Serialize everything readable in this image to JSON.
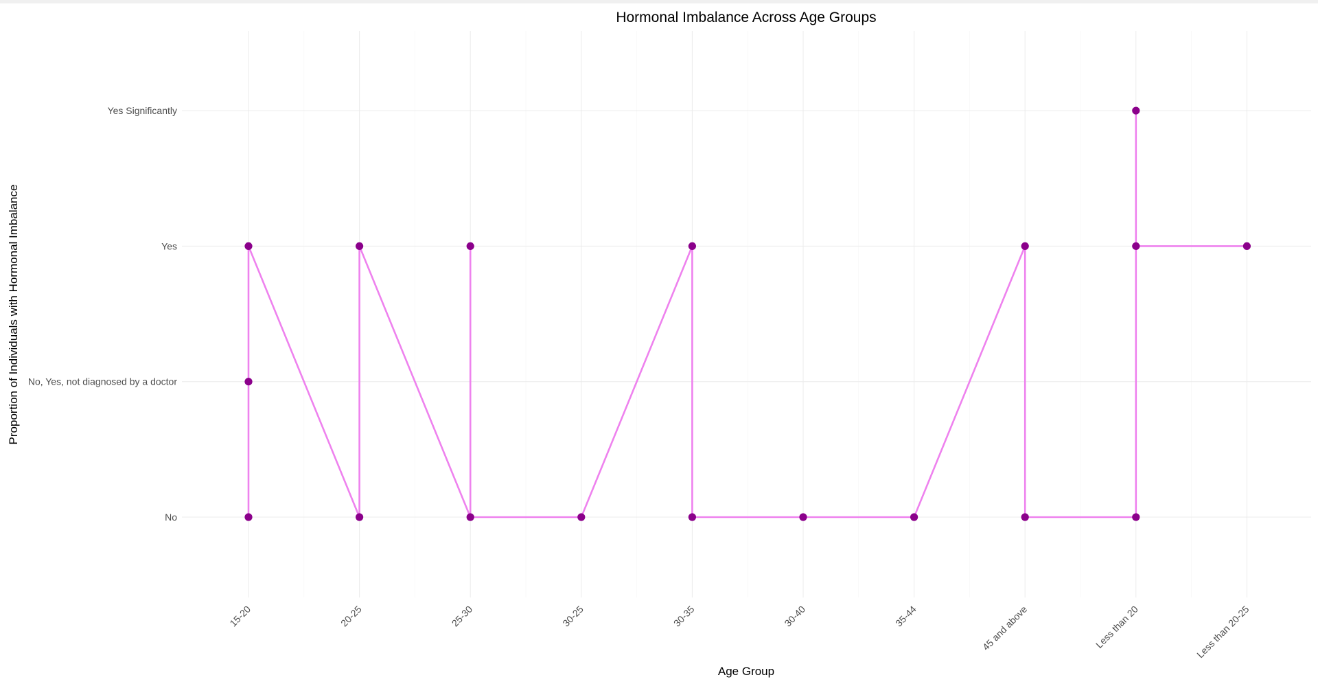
{
  "chart_data": {
    "type": "line",
    "title": "Hormonal Imbalance Across Age Groups",
    "xlabel": "Age Group",
    "ylabel": "Proportion of Individuals with Hormonal Imbalance",
    "categories": [
      "15-20",
      "20-25",
      "25-30",
      "30-25",
      "30-35",
      "30-40",
      "35-44",
      "45 and above",
      "Less than 20",
      "Less than 20-25"
    ],
    "y_levels": [
      "No",
      "No, Yes, not diagnosed by a doctor",
      "Yes",
      "Yes Significantly"
    ],
    "points": [
      {
        "x": "15-20",
        "y": "No"
      },
      {
        "x": "15-20",
        "y": "No, Yes, not diagnosed by a doctor"
      },
      {
        "x": "15-20",
        "y": "Yes"
      },
      {
        "x": "20-25",
        "y": "No"
      },
      {
        "x": "20-25",
        "y": "Yes"
      },
      {
        "x": "25-30",
        "y": "Yes"
      },
      {
        "x": "25-30",
        "y": "No"
      },
      {
        "x": "30-25",
        "y": "No"
      },
      {
        "x": "30-35",
        "y": "Yes"
      },
      {
        "x": "30-35",
        "y": "No"
      },
      {
        "x": "30-40",
        "y": "No"
      },
      {
        "x": "35-44",
        "y": "No"
      },
      {
        "x": "45 and above",
        "y": "Yes"
      },
      {
        "x": "45 and above",
        "y": "No"
      },
      {
        "x": "Less than 20",
        "y": "No"
      },
      {
        "x": "Less than 20",
        "y": "Yes"
      },
      {
        "x": "Less than 20",
        "y": "Yes Significantly"
      },
      {
        "x": "Less than 20-25",
        "y": "Yes"
      }
    ],
    "line_path": [
      {
        "x": "15-20",
        "y": "No"
      },
      {
        "x": "15-20",
        "y": "Yes"
      },
      {
        "x": "20-25",
        "y": "No"
      },
      {
        "x": "20-25",
        "y": "Yes"
      },
      {
        "x": "25-30",
        "y": "No"
      },
      {
        "x": "25-30",
        "y": "Yes"
      },
      {
        "x": "25-30",
        "y": "No"
      },
      {
        "x": "30-25",
        "y": "No"
      },
      {
        "x": "30-35",
        "y": "Yes"
      },
      {
        "x": "30-35",
        "y": "No"
      },
      {
        "x": "30-40",
        "y": "No"
      },
      {
        "x": "35-44",
        "y": "No"
      },
      {
        "x": "45 and above",
        "y": "Yes"
      },
      {
        "x": "45 and above",
        "y": "No"
      },
      {
        "x": "Less than 20",
        "y": "No"
      },
      {
        "x": "Less than 20",
        "y": "Yes Significantly"
      },
      {
        "x": "Less than 20",
        "y": "Yes"
      },
      {
        "x": "Less than 20-25",
        "y": "Yes"
      }
    ],
    "grid": true,
    "legend": "none",
    "colors": {
      "line": "#ee82ee",
      "point": "#8b008b",
      "grid": "#ebebeb"
    }
  }
}
